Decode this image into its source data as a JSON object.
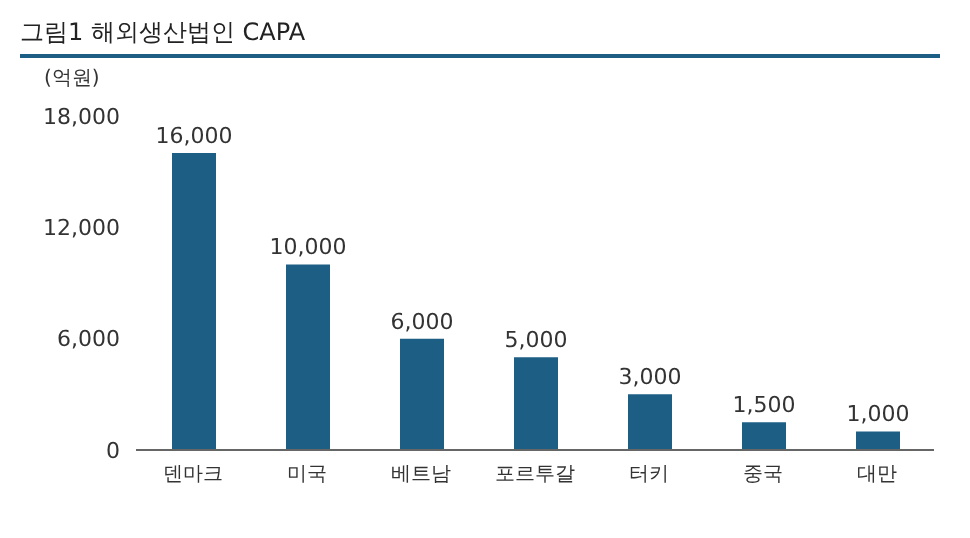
{
  "chart_data": {
    "type": "bar",
    "title": "그림1 해외생산법인 CAPA",
    "ylabel": "(억원)",
    "categories": [
      "덴마크",
      "미국",
      "베트남",
      "포르투갈",
      "터키",
      "중국",
      "대만"
    ],
    "values": [
      16000,
      10000,
      6000,
      5000,
      3000,
      1500,
      1000
    ],
    "value_labels": [
      "16,000",
      "10,000",
      "6,000",
      "5,000",
      "3,000",
      "1,500",
      "1,000"
    ],
    "color": "#1d5e84",
    "ylim": [
      0,
      18000
    ],
    "yticks": [
      0,
      {
        "value": 6000,
        "label": "6,000"
      },
      {
        "value": 12000,
        "label": "12,000"
      },
      {
        "value": 18000,
        "label": "18,000"
      }
    ]
  }
}
